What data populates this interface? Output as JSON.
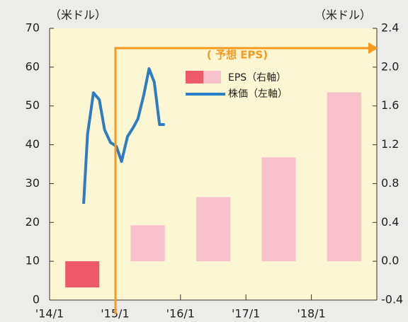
{
  "chart_data": {
    "type": "bar-line",
    "y_label": "（米ドル）",
    "y2_label": "（米ドル）",
    "annotation": "( 予想 EPS)",
    "xlim": [
      2014,
      2019
    ],
    "xticks": [
      {
        "value": 2014,
        "label": "'14/1"
      },
      {
        "value": 2015,
        "label": "'15/1"
      },
      {
        "value": 2016,
        "label": "'16/1"
      },
      {
        "value": 2017,
        "label": "'17/1"
      },
      {
        "value": 2018,
        "label": "'18/1"
      }
    ],
    "ylim": [
      0,
      70
    ],
    "yticks": [
      0,
      10,
      20,
      30,
      40,
      50,
      60,
      70
    ],
    "y2lim": [
      -0.4,
      2.4
    ],
    "y2ticks": [
      {
        "value": -0.4,
        "label": "-0.4"
      },
      {
        "value": 0,
        "label": "0.0"
      },
      {
        "value": 0.4,
        "label": "0.4"
      },
      {
        "value": 0.8,
        "label": "0.8"
      },
      {
        "value": 1.2,
        "label": "1.2"
      },
      {
        "value": 1.6,
        "label": "1.6"
      },
      {
        "value": 2,
        "label": "2.0"
      },
      {
        "value": 2.4,
        "label": "2.4"
      }
    ],
    "grid": false,
    "series": [
      {
        "name": "EPS（右軸）",
        "type": "bar",
        "axis": "y2",
        "colors": [
          "#ee5a6a",
          "#f7c0cb",
          "#f7c0cb",
          "#f7c0cb",
          "#f7c0cb"
        ],
        "x": [
          2014.5,
          2015.5,
          2016.5,
          2017.5,
          2018.5
        ],
        "values": [
          -0.27,
          0.37,
          0.66,
          1.07,
          1.74
        ]
      },
      {
        "name": "株価（左軸）",
        "type": "line",
        "color": "#2e7dc4",
        "x": [
          2014.52,
          2014.58,
          2014.67,
          2014.76,
          2014.84,
          2014.93,
          2015.02,
          2015.1,
          2015.19,
          2015.28,
          2015.35,
          2015.44,
          2015.52,
          2015.6,
          2015.68,
          2015.76
        ],
        "values": [
          24.8,
          42.7,
          53.4,
          51.6,
          43.9,
          40.6,
          39.6,
          35.7,
          42.1,
          44.5,
          46.7,
          52.9,
          59.6,
          56.1,
          45.2,
          45.2
        ]
      }
    ]
  }
}
